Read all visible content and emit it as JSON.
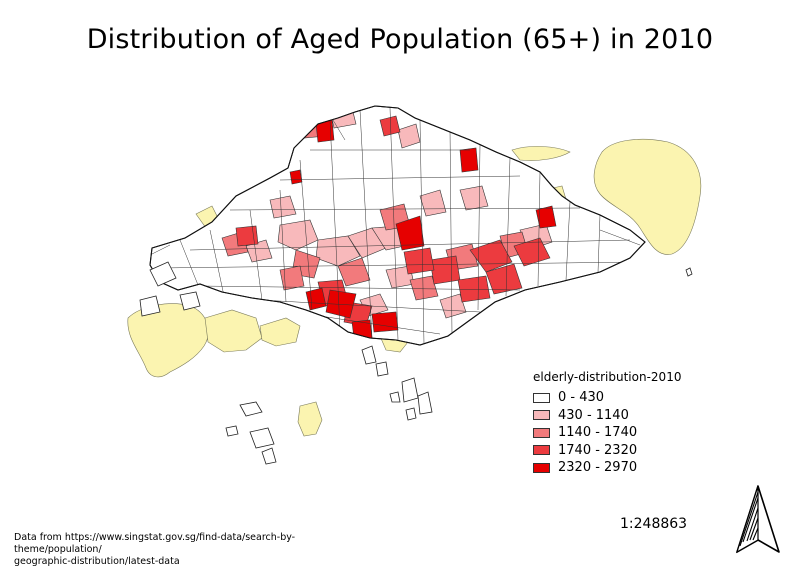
{
  "map": {
    "title": "Distribution of Aged Population (65+) in 2010",
    "legend": {
      "title": "elderly-distribution-2010",
      "classes": [
        {
          "label": "0 - 430",
          "color": "#ffffff"
        },
        {
          "label": "430 - 1140",
          "color": "#f8b9bb"
        },
        {
          "label": "1140 - 1740",
          "color": "#f27a7c"
        },
        {
          "label": "1740 - 2320",
          "color": "#ec3b3f"
        },
        {
          "label": "2320 - 2970",
          "color": "#e60000"
        }
      ]
    },
    "no_data_color": "#fbf4b0",
    "scale_text": "1:248863",
    "source_line1": "Data from https://www.singstat.gov.sg/find-data/search-by-theme/population/",
    "source_line2": "geographic-distribution/latest-data",
    "north_arrow_icon": "north-arrow-icon"
  }
}
